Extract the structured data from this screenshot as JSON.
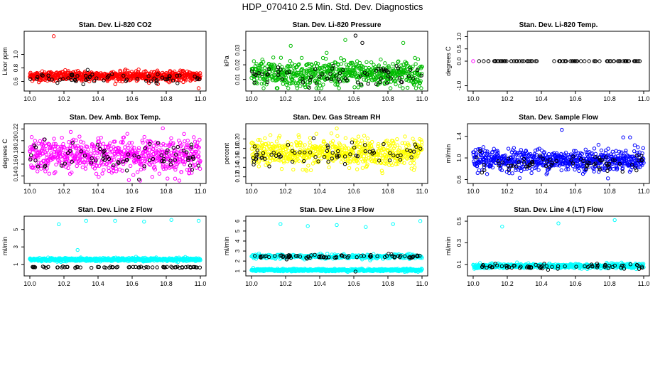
{
  "figure": {
    "title": "HDP_070410  2.5 Min. Std. Dev. Diagnostics"
  },
  "chart_data": [
    {
      "type": "scatter",
      "title": "Stan. Dev. Li-820 CO2",
      "ylabel": "Licor ppm",
      "xlabel": "",
      "xlim": [
        10.0,
        11.0
      ],
      "ylim": [
        0.5,
        1.3
      ],
      "xticks": [
        "10.0",
        "10.2",
        "10.4",
        "10.6",
        "10.8",
        "11.0"
      ],
      "yticks": [
        {
          "v": 0.6,
          "label": "0.6"
        },
        {
          "v": 0.8,
          "label": "0.8"
        },
        {
          "v": 1.0,
          "label": "1.0"
        }
      ],
      "series": [
        {
          "name": "primary",
          "color": "#ff0000",
          "count": 700,
          "center": 0.68,
          "spread": 0.035,
          "outliers": [
            [
              0.14,
              1.27
            ],
            [
              0.99,
              0.47
            ]
          ]
        },
        {
          "name": "secondary",
          "color": "#000000",
          "count": 60,
          "center": 0.64,
          "spread": 0.04,
          "outliers": []
        }
      ]
    },
    {
      "type": "scatter",
      "title": "Stan. Dev. Li-820 Pressure",
      "ylabel": "kPa",
      "xlabel": "",
      "xlim": [
        10.0,
        11.0
      ],
      "ylim": [
        0.004,
        0.041
      ],
      "xticks": [
        "10.0",
        "10.2",
        "10.4",
        "10.6",
        "10.8",
        "11.0"
      ],
      "yticks": [
        {
          "v": 0.01,
          "label": "0.01"
        },
        {
          "v": 0.02,
          "label": "0.02"
        },
        {
          "v": 0.03,
          "label": "0.03"
        }
      ],
      "series": [
        {
          "name": "primary",
          "color": "#00bb00",
          "count": 650,
          "center": 0.014,
          "spread": 0.0045,
          "outliers": [
            [
              0.23,
              0.033
            ],
            [
              0.55,
              0.037
            ],
            [
              0.89,
              0.035
            ]
          ]
        },
        {
          "name": "secondary",
          "color": "#000000",
          "count": 70,
          "center": 0.012,
          "spread": 0.004,
          "outliers": [
            [
              0.61,
              0.04
            ],
            [
              0.65,
              0.035
            ]
          ]
        }
      ]
    },
    {
      "type": "scatter",
      "title": "Stan. Dev. Li-820 Temp.",
      "ylabel": "degrees C",
      "xlabel": "",
      "xlim": [
        10.0,
        11.0
      ],
      "ylim": [
        -1.1,
        1.1
      ],
      "xticks": [
        "10.0",
        "10.2",
        "10.4",
        "10.6",
        "10.8",
        "11.0"
      ],
      "yticks": [
        {
          "v": -1.0,
          "label": "-1.0"
        },
        {
          "v": 0.0,
          "label": "0.0"
        },
        {
          "v": 0.5,
          "label": "0.5"
        },
        {
          "v": 1.0,
          "label": "1.0"
        }
      ],
      "series": [
        {
          "name": "primary",
          "color": "#ff00ff",
          "count": 1,
          "center": 0.0,
          "spread": 0.0,
          "outliers": []
        },
        {
          "name": "secondary",
          "color": "#000000",
          "count": 80,
          "center": 0.0,
          "spread": 0.0,
          "outliers": []
        }
      ]
    },
    {
      "type": "scatter",
      "title": "Stan. Dev. Amb. Box Temp.",
      "ylabel": "degrees C",
      "xlabel": "",
      "xlim": [
        10.0,
        11.0
      ],
      "ylim": [
        0.132,
        0.224
      ],
      "xticks": [
        "10.0",
        "10.2",
        "10.4",
        "10.6",
        "10.8",
        "11.0"
      ],
      "yticks": [
        {
          "v": 0.14,
          "label": "0.14"
        },
        {
          "v": 0.16,
          "label": "0.16"
        },
        {
          "v": 0.18,
          "label": "0.18"
        },
        {
          "v": 0.2,
          "label": "0.20"
        },
        {
          "v": 0.22,
          "label": "0.22"
        }
      ],
      "series": [
        {
          "name": "primary",
          "color": "#ff00ff",
          "count": 650,
          "center": 0.175,
          "spread": 0.014,
          "outliers": [
            [
              0.78,
              0.221
            ],
            [
              0.24,
              0.215
            ]
          ]
        },
        {
          "name": "secondary",
          "color": "#000000",
          "count": 70,
          "center": 0.172,
          "spread": 0.013,
          "outliers": []
        }
      ]
    },
    {
      "type": "scatter",
      "title": "Stan. Dev. Gas Stream RH",
      "ylabel": "percent",
      "xlabel": "",
      "xlim": [
        10.0,
        11.0
      ],
      "ylim": [
        0.112,
        0.226
      ],
      "xticks": [
        "10.0",
        "10.2",
        "10.4",
        "10.6",
        "10.8",
        "11.0"
      ],
      "yticks": [
        {
          "v": 0.12,
          "label": "0.12"
        },
        {
          "v": 0.14,
          "label": "0.14"
        },
        {
          "v": 0.16,
          "label": "0.16"
        },
        {
          "v": 0.18,
          "label": "0.18"
        },
        {
          "v": 0.2,
          "label": "0.20"
        }
      ],
      "series": [
        {
          "name": "primary",
          "color": "#ffff00",
          "count": 650,
          "center": 0.17,
          "spread": 0.014,
          "outliers": [
            [
              0.5,
              0.222
            ],
            [
              0.9,
              0.205
            ]
          ]
        },
        {
          "name": "secondary",
          "color": "#000000",
          "count": 70,
          "center": 0.165,
          "spread": 0.013,
          "outliers": []
        }
      ]
    },
    {
      "type": "scatter",
      "title": "Stan. Dev. Sample Flow",
      "ylabel": "ml/min",
      "xlabel": "",
      "xlim": [
        10.0,
        11.0
      ],
      "ylim": [
        0.58,
        1.58
      ],
      "xticks": [
        "10.0",
        "10.2",
        "10.4",
        "10.6",
        "10.8",
        "11.0"
      ],
      "yticks": [
        {
          "v": 0.6,
          "label": "0.6"
        },
        {
          "v": 1.0,
          "label": "1.0"
        },
        {
          "v": 1.4,
          "label": "1.4"
        }
      ],
      "series": [
        {
          "name": "primary",
          "color": "#0000ff",
          "count": 650,
          "center": 0.96,
          "spread": 0.1,
          "outliers": [
            [
              0.52,
              1.52
            ],
            [
              0.88,
              1.38
            ],
            [
              0.92,
              1.38
            ],
            [
              0.06,
              1.2
            ]
          ]
        },
        {
          "name": "secondary",
          "color": "#000000",
          "count": 70,
          "center": 0.9,
          "spread": 0.09,
          "outliers": []
        }
      ]
    },
    {
      "type": "scatter",
      "title": "Stan. Dev. Line 2 Flow",
      "ylabel": "ml/min",
      "xlabel": "",
      "xlim": [
        10.0,
        11.0
      ],
      "ylim": [
        0.0,
        6.2
      ],
      "xticks": [
        "10.0",
        "10.2",
        "10.4",
        "10.6",
        "10.8",
        "11.0"
      ],
      "yticks": [
        {
          "v": 1,
          "label": "1"
        },
        {
          "v": 3,
          "label": "3"
        },
        {
          "v": 5,
          "label": "5"
        }
      ],
      "series": [
        {
          "name": "primary",
          "color": "#00ffff",
          "count": 600,
          "center": 1.55,
          "spread": 0.09,
          "outliers": [
            [
              0.17,
              5.6
            ],
            [
              0.33,
              6.0
            ],
            [
              0.5,
              6.0
            ],
            [
              0.67,
              5.9
            ],
            [
              0.83,
              6.1
            ],
            [
              0.99,
              6.0
            ],
            [
              0.28,
              2.65
            ]
          ]
        },
        {
          "name": "secondary",
          "color": "#000000",
          "count": 70,
          "center": 0.68,
          "spread": 0.04,
          "outliers": []
        }
      ]
    },
    {
      "type": "scatter",
      "title": "Stan. Dev. Line 3 Flow",
      "ylabel": "ml/min",
      "xlabel": "",
      "xlim": [
        10.0,
        11.0
      ],
      "ylim": [
        0.8,
        6.2
      ],
      "xticks": [
        "10.0",
        "10.2",
        "10.4",
        "10.6",
        "10.8",
        "11.0"
      ],
      "yticks": [
        {
          "v": 1,
          "label": "1"
        },
        {
          "v": 2,
          "label": "2"
        },
        {
          "v": 3,
          "label": "3"
        },
        {
          "v": 4,
          "label": "4"
        },
        {
          "v": 5,
          "label": "5"
        },
        {
          "v": 6,
          "label": "6"
        }
      ],
      "series": [
        {
          "name": "primary",
          "color": "#00ffff",
          "count": 600,
          "center": 1.1,
          "spread": 0.06,
          "outliers": [
            [
              0.17,
              5.7
            ],
            [
              0.33,
              5.5
            ],
            [
              0.5,
              5.6
            ],
            [
              0.67,
              5.4
            ],
            [
              0.83,
              5.7
            ],
            [
              0.99,
              6.0
            ]
          ]
        },
        {
          "name": "primary-band",
          "color": "#00ffff",
          "count": 300,
          "center": 2.45,
          "spread": 0.12,
          "outliers": []
        },
        {
          "name": "secondary",
          "color": "#000000",
          "count": 80,
          "center": 2.45,
          "spread": 0.1,
          "outliers": [
            [
              0.61,
              0.95
            ]
          ]
        }
      ]
    },
    {
      "type": "scatter",
      "title": "Stan. Dev. Line 4 (LT) Flow",
      "ylabel": "ml/min",
      "xlabel": "",
      "xlim": [
        10.0,
        11.0
      ],
      "ylim": [
        0.02,
        0.52
      ],
      "xticks": [
        "10.0",
        "10.2",
        "10.4",
        "10.6",
        "10.8",
        "11.0"
      ],
      "yticks": [
        {
          "v": 0.1,
          "label": "0.1"
        },
        {
          "v": 0.3,
          "label": "0.3"
        },
        {
          "v": 0.5,
          "label": "0.5"
        }
      ],
      "series": [
        {
          "name": "primary",
          "color": "#00ffff",
          "count": 600,
          "center": 0.085,
          "spread": 0.01,
          "outliers": [
            [
              0.17,
              0.45
            ],
            [
              0.5,
              0.48
            ],
            [
              0.83,
              0.51
            ]
          ]
        },
        {
          "name": "secondary",
          "color": "#000000",
          "count": 70,
          "center": 0.08,
          "spread": 0.012,
          "outliers": []
        }
      ]
    }
  ]
}
